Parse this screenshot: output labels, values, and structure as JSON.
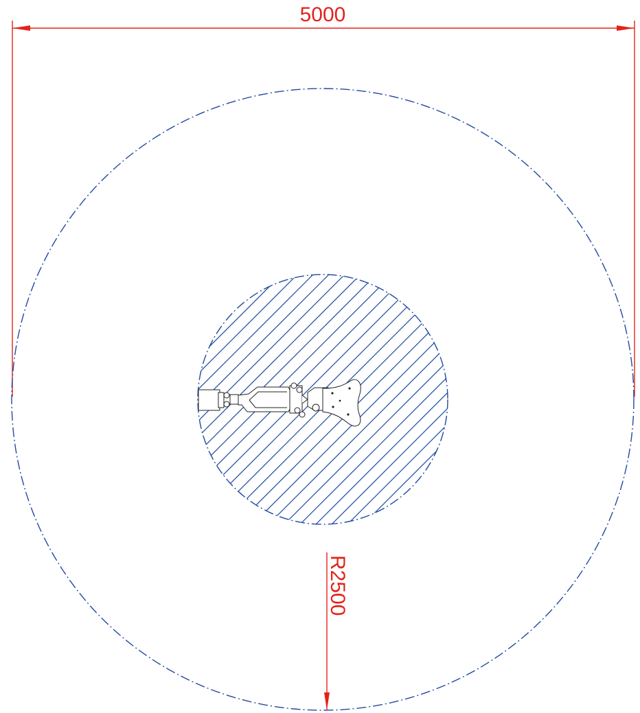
{
  "dimensions": {
    "width_label": "5000",
    "radius_label": "R2500"
  },
  "colors": {
    "dimension": "#e2231a",
    "boundary": "#1f4aa0",
    "robot_outline": "#222222",
    "background": "#ffffff"
  }
}
